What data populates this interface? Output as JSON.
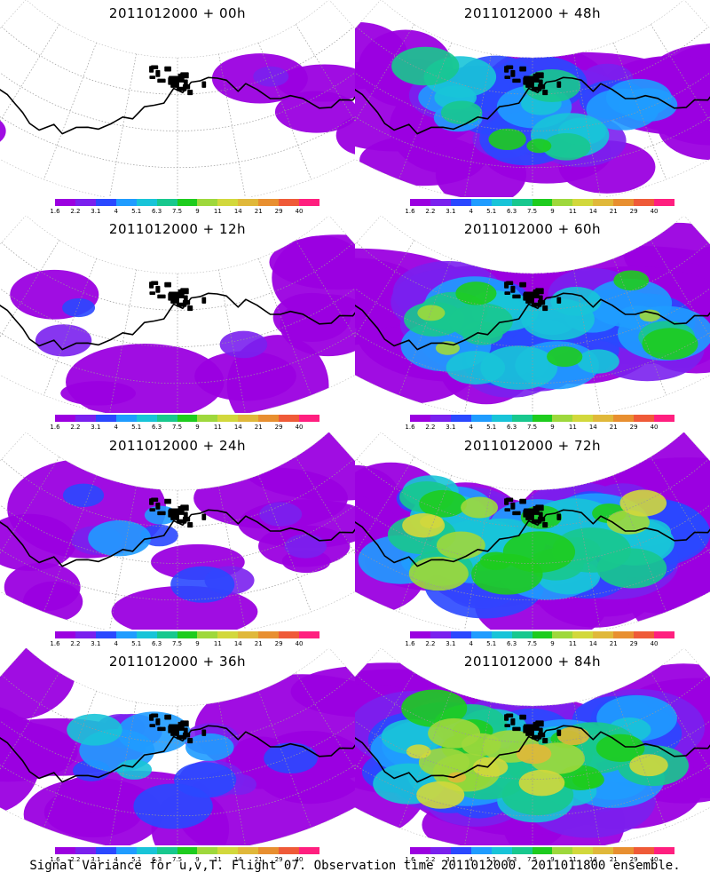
{
  "caption": "Signal Variance for u,v,T. Flight 07. Observation time 2011012000. 2011011800 ensemble.",
  "colorbar": {
    "labels": [
      "1.6",
      "2.2",
      "3.1",
      "4",
      "5.1",
      "6.3",
      "7.5",
      "9",
      "11",
      "14",
      "21",
      "29",
      "40"
    ],
    "colors": [
      "#9b00e0",
      "#7a20ee",
      "#2a48ff",
      "#1f9cff",
      "#18c4d8",
      "#18c88e",
      "#1ecc1e",
      "#9ed83c",
      "#d2d83c",
      "#e0b83a",
      "#e88f30",
      "#ef5a38",
      "#ff1f7f"
    ]
  },
  "panels": [
    {
      "title": "2011012000 + 00h",
      "lead_hours": 0
    },
    {
      "title": "2011012000 + 48h",
      "lead_hours": 48
    },
    {
      "title": "2011012000 + 12h",
      "lead_hours": 12
    },
    {
      "title": "2011012000 + 60h",
      "lead_hours": 60
    },
    {
      "title": "2011012000 + 24h",
      "lead_hours": 24
    },
    {
      "title": "2011012000 + 72h",
      "lead_hours": 72
    },
    {
      "title": "2011012000 + 36h",
      "lead_hours": 36
    },
    {
      "title": "2011012000 + 84h",
      "lead_hours": 84
    }
  ]
}
